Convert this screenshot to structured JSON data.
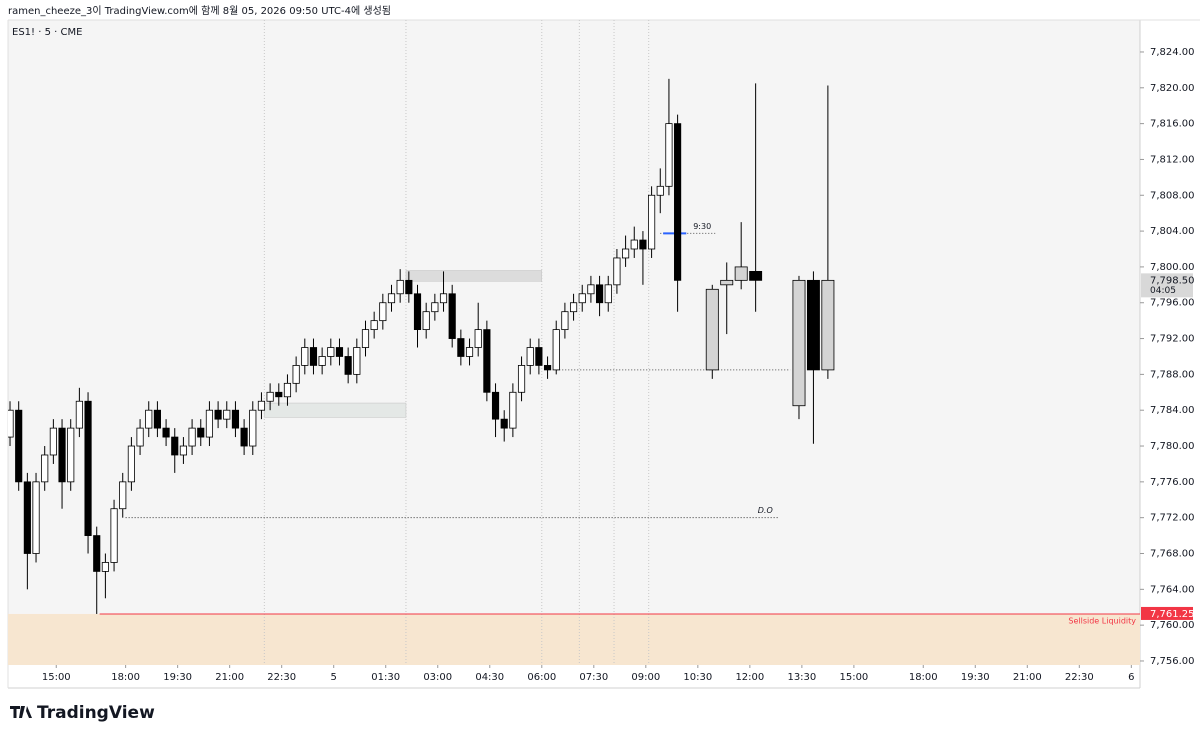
{
  "header": {
    "caption": "ramen_cheeze_3이 TradingView.com에 함께 8월 05, 2026 09:50 UTC-4에 생성됨",
    "brand": "TradingView"
  },
  "chart_data": {
    "type": "candlestick",
    "symbol": "ES1! · 5 · CME",
    "xlim": [
      -0.7,
      391
    ],
    "ylim": [
      7755.55,
      7827.57
    ],
    "xticks": [
      {
        "value": 16,
        "label": "15:00"
      },
      {
        "value": 40,
        "label": "18:00"
      },
      {
        "value": 58,
        "label": "19:30"
      },
      {
        "value": 76,
        "label": "21:00"
      },
      {
        "value": 94,
        "label": "22:30"
      },
      {
        "value": 112,
        "label": "5"
      },
      {
        "value": 130,
        "label": "01:30"
      },
      {
        "value": 148,
        "label": "03:00"
      },
      {
        "value": 166,
        "label": "04:30"
      },
      {
        "value": 184,
        "label": "06:00"
      },
      {
        "value": 202,
        "label": "07:30"
      },
      {
        "value": 220,
        "label": "09:00"
      },
      {
        "value": 238,
        "label": "10:30"
      },
      {
        "value": 256,
        "label": "12:00"
      },
      {
        "value": 274,
        "label": "13:30"
      },
      {
        "value": 292,
        "label": "15:00"
      },
      {
        "value": 316,
        "label": "18:00"
      },
      {
        "value": 334,
        "label": "19:30"
      },
      {
        "value": 352,
        "label": "21:00"
      },
      {
        "value": 370,
        "label": "22:30"
      },
      {
        "value": 388,
        "label": "6"
      }
    ],
    "yticks": [
      {
        "value": 7756,
        "label": "7,756.00"
      },
      {
        "value": 7760,
        "label": "7,760.00"
      },
      {
        "value": 7764,
        "label": "7,764.00"
      },
      {
        "value": 7768,
        "label": "7,768.00"
      },
      {
        "value": 7772,
        "label": "7,772.00"
      },
      {
        "value": 7776,
        "label": "7,776.00"
      },
      {
        "value": 7780,
        "label": "7,780.00"
      },
      {
        "value": 7784,
        "label": "7,784.00"
      },
      {
        "value": 7788,
        "label": "7,788.00"
      },
      {
        "value": 7792,
        "label": "7,792.00"
      },
      {
        "value": 7796,
        "label": "7,796.00"
      },
      {
        "value": 7800,
        "label": "7,800.00"
      },
      {
        "value": 7804,
        "label": "7,804.00"
      },
      {
        "value": 7808,
        "label": "7,808.00"
      },
      {
        "value": 7812,
        "label": "7,812.00"
      },
      {
        "value": 7816,
        "label": "7,816.00"
      },
      {
        "value": 7820,
        "label": "7,820.00"
      },
      {
        "value": 7824,
        "label": "7,824.00"
      }
    ],
    "up_color": "#ffffff",
    "down_color": "#000000",
    "x": [
      0,
      3,
      6,
      9,
      12,
      15,
      18,
      21,
      24,
      27,
      30,
      33,
      36,
      39,
      42,
      45,
      48,
      51,
      54,
      57,
      60,
      63,
      66,
      69,
      72,
      75,
      78,
      81,
      84,
      87,
      90,
      93,
      96,
      99,
      102,
      105,
      108,
      111,
      114,
      117,
      120,
      123,
      126,
      129,
      132,
      135,
      138,
      141,
      144,
      147,
      150,
      153,
      156,
      159,
      162,
      165,
      168,
      171,
      174,
      177,
      180,
      183,
      186,
      189,
      192,
      195,
      198,
      201,
      204,
      207,
      210,
      213,
      216,
      219,
      222,
      225,
      228,
      231
    ],
    "open": [
      7781,
      7784,
      7776,
      7768,
      7776,
      7779,
      7782,
      7776,
      7782,
      7785,
      7770,
      7766,
      7767,
      7773,
      7776,
      7780,
      7782,
      7784,
      7782,
      7781,
      7779,
      7780,
      7782,
      7781,
      7784,
      7783,
      7784,
      7782,
      7780,
      7784,
      7785,
      7786,
      7785.5,
      7787,
      7789,
      7791,
      7789,
      7790,
      7791,
      7790,
      7788,
      7791,
      7793,
      7794,
      7796,
      7797,
      7798.5,
      7797,
      7793,
      7795,
      7796,
      7797,
      7792,
      7790,
      7791,
      7793,
      7786,
      7783,
      7782,
      7786,
      7789,
      7791,
      7789,
      7788.5,
      7793,
      7795,
      7796,
      7797,
      7798,
      7796,
      7798,
      7801,
      7802,
      7803,
      7802,
      7808,
      7809,
      7816
    ],
    "high": [
      7785,
      7785,
      7777,
      7777,
      7780,
      7783,
      7783,
      7783,
      7786.5,
      7786,
      7771,
      7768,
      7774,
      7777,
      7781,
      7783,
      7785,
      7785,
      7783,
      7782,
      7781,
      7783,
      7783,
      7785,
      7785,
      7785,
      7785,
      7783,
      7785,
      7786,
      7787,
      7787,
      7788,
      7790,
      7792,
      7792,
      7791,
      7792,
      7792,
      7791,
      7792,
      7794,
      7795,
      7797,
      7798,
      7799.75,
      7799.5,
      7798,
      7796,
      7797,
      7799.5,
      7798,
      7793,
      7792,
      7796,
      7794,
      7787,
      7784,
      7787,
      7790,
      7792,
      7792,
      7790,
      7794,
      7796,
      7797,
      7798,
      7799,
      7799,
      7799,
      7802,
      7803.5,
      7804.5,
      7804,
      7809,
      7811,
      7821,
      7817
    ],
    "low": [
      7780,
      7775,
      7764,
      7767,
      7775,
      7778,
      7773,
      7775,
      7781,
      7768,
      7761.25,
      7763,
      7766,
      7772,
      7775,
      7779,
      7781,
      7781,
      7780,
      7777,
      7778,
      7779,
      7780,
      7780,
      7782,
      7782,
      7781,
      7779,
      7779,
      7783,
      7784,
      7784.5,
      7784.5,
      7786,
      7788,
      7788,
      7788,
      7789,
      7789,
      7787,
      7787,
      7790,
      7792,
      7793,
      7795,
      7796,
      7796,
      7791,
      7792,
      7794,
      7795,
      7791,
      7789,
      7789,
      7790,
      7785,
      7781,
      7780.5,
      7781,
      7785,
      7788,
      7788,
      7787.5,
      7788,
      7792,
      7794,
      7795,
      7796,
      7794.5,
      7795,
      7797,
      7800,
      7801,
      7798,
      7801,
      7806,
      7808,
      7795
    ],
    "close": [
      7784,
      7776,
      7768,
      7776,
      7779,
      7782,
      7776,
      7782,
      7785,
      7770,
      7766,
      7767,
      7773,
      7776,
      7780,
      7782,
      7784,
      7782,
      7781,
      7779,
      7780,
      7782,
      7781,
      7784,
      7783,
      7784,
      7782,
      7780,
      7784,
      7785,
      7786,
      7785.5,
      7787,
      7789,
      7791,
      7789,
      7790,
      7791,
      7790,
      7788,
      7791,
      7793,
      7794,
      7796,
      7797,
      7798.5,
      7797,
      7793,
      7795,
      7796,
      7797,
      7792,
      7790,
      7791,
      7793,
      7786,
      7783,
      7782,
      7786,
      7789,
      7791,
      7789,
      7788.5,
      7793,
      7795,
      7796,
      7797,
      7798,
      7796,
      7798,
      7801,
      7802,
      7803,
      7802,
      7808,
      7809,
      7816,
      7798.5
    ],
    "htf": {
      "up_color": "#d4d4d4",
      "down_color": "#000000",
      "x": [
        243,
        248,
        253,
        258,
        273,
        278,
        283
      ],
      "open": [
        7788.5,
        7798,
        7798.5,
        7799.5,
        7784.5,
        7798.5,
        7788.5
      ],
      "high": [
        7798,
        7800.5,
        7805,
        7820.5,
        7799,
        7799.5,
        7820.25
      ],
      "low": [
        7787.5,
        7792.5,
        7797.5,
        7795,
        7783,
        7780.25,
        7787.5
      ],
      "close": [
        7797.5,
        7798.5,
        7800,
        7798.5,
        7798.5,
        7788.5,
        7798.5
      ]
    },
    "sessions": [
      88,
      137,
      184,
      197,
      209,
      221
    ],
    "zones": [
      {
        "x": [
          137,
          184
        ],
        "y": [
          7798.4,
          7799.6
        ],
        "color": "#dcdcdc"
      },
      {
        "x": [
          88,
          137
        ],
        "y": [
          7783.2,
          7784.8
        ],
        "color": "#e4e8e6"
      }
    ],
    "levels": [
      {
        "value": 7772,
        "x": [
          40,
          266
        ],
        "label": "D.O",
        "color": "#333333",
        "style": "dotted"
      },
      {
        "value": 7788.5,
        "x": [
          189,
          270
        ],
        "color": "#555555",
        "style": "dotted"
      },
      {
        "value": 7803.75,
        "x": [
          225,
          244
        ],
        "label": "9:30",
        "color": "#555555",
        "style": "dotted"
      },
      {
        "value": 7803.75,
        "x": [
          226,
          234
        ],
        "color": "#2962ff",
        "style": "solid"
      }
    ],
    "liquidity": {
      "value": 7761.25,
      "label": "7,761.25",
      "text": "Sellside Liquidity",
      "color": "#f23645",
      "fill": "#f7e6d0",
      "x_start": 31
    },
    "last_price": {
      "value": 7798.5,
      "label": "7,798.50",
      "countdown": "04:05"
    }
  }
}
